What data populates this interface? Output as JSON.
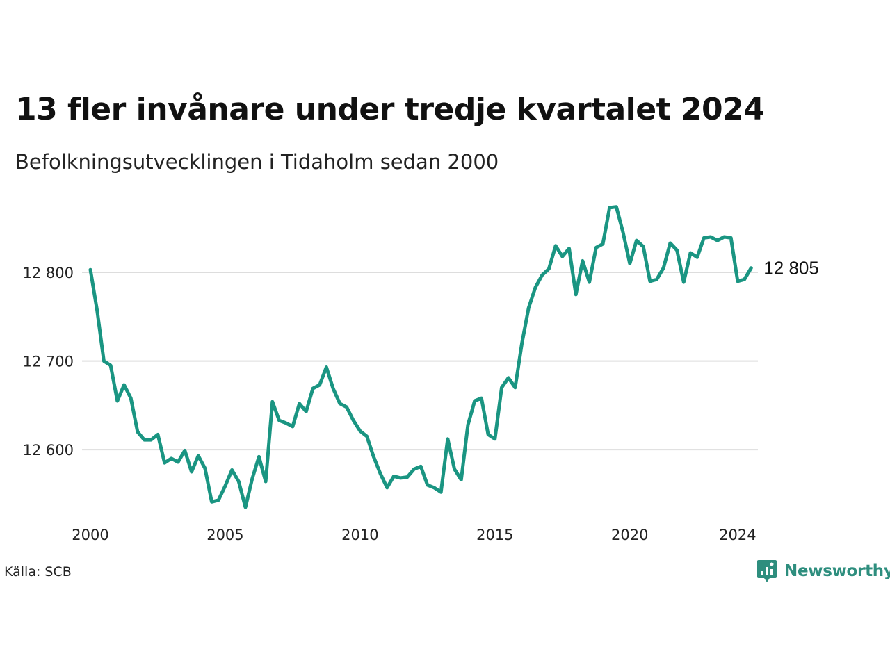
{
  "title": "13 fler invånare under tredje kvartalet 2024",
  "subtitle": "Befolkningsutvecklingen i Tidaholm sedan 2000",
  "source": "Källa: SCB",
  "brand": {
    "name": "Newsworthy",
    "icon": "newsworthy-logo-icon",
    "color": "#2e8e7e"
  },
  "chart_data": {
    "type": "line",
    "title": "13 fler invånare under tredje kvartalet 2024",
    "subtitle": "Befolkningsutvecklingen i Tidaholm sedan 2000",
    "xlabel": "",
    "ylabel": "",
    "xlim": [
      2000,
      2024.75
    ],
    "ylim": [
      12535,
      12880
    ],
    "x_ticks": [
      2000,
      2005,
      2010,
      2015,
      2020,
      2024
    ],
    "y_ticks": [
      12600,
      12700,
      12800
    ],
    "y_tick_labels": [
      "12 600",
      "12 700",
      "12 800"
    ],
    "grid": "horizontal",
    "line_color": "#1a9582",
    "end_label": "12 805",
    "start": 2000.0,
    "step": 0.25,
    "values": [
      12803,
      12757,
      12700,
      12695,
      12655,
      12673,
      12658,
      12620,
      12611,
      12611,
      12617,
      12585,
      12590,
      12586,
      12599,
      12575,
      12593,
      12579,
      12541,
      12543,
      12559,
      12577,
      12564,
      12535,
      12567,
      12592,
      12564,
      12654,
      12633,
      12630,
      12626,
      12652,
      12643,
      12669,
      12673,
      12693,
      12669,
      12652,
      12648,
      12633,
      12621,
      12615,
      12592,
      12573,
      12557,
      12570,
      12568,
      12569,
      12578,
      12581,
      12560,
      12557,
      12552,
      12612,
      12578,
      12566,
      12628,
      12655,
      12658,
      12617,
      12612,
      12670,
      12681,
      12670,
      12720,
      12760,
      12783,
      12797,
      12804,
      12830,
      12818,
      12827,
      12775,
      12813,
      12789,
      12828,
      12832,
      12873,
      12874,
      12845,
      12810,
      12836,
      12829,
      12790,
      12792,
      12805,
      12833,
      12825,
      12789,
      12822,
      12817,
      12839,
      12840,
      12836,
      12840,
      12839,
      12790,
      12792,
      12805
    ]
  }
}
